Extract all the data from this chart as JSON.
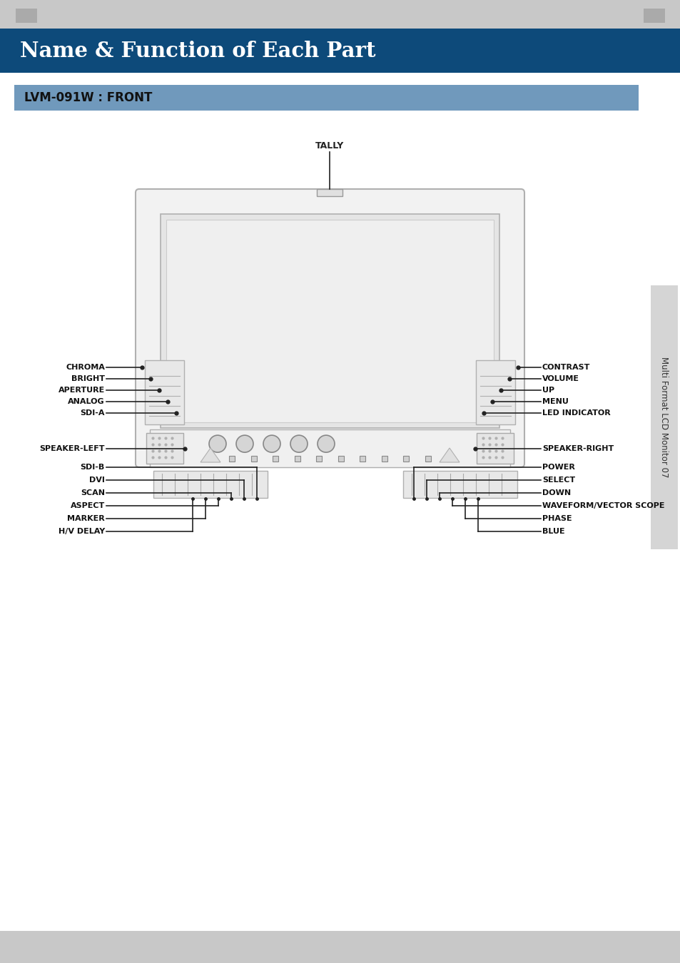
{
  "title": "Name & Function of Each Part",
  "title_bg": "#0d4a7a",
  "title_color": "#ffffff",
  "subtitle": "LVM-091W : FRONT",
  "subtitle_bg": "#7099bc",
  "subtitle_color": "#111111",
  "page_bg": "#ffffff",
  "sidebar_text": "Multi Format LCD Monitor 07",
  "left_upper_labels": [
    "CHROMA",
    "BRIGHT",
    "APERTURE",
    "ANALOG",
    "SDI-A"
  ],
  "left_lower_labels": [
    "SDI-B",
    "DVI",
    "SCAN",
    "ASPECT",
    "MARKER",
    "H/V DELAY"
  ],
  "right_upper_labels": [
    "CONTRAST",
    "VOLUME",
    "UP",
    "MENU",
    "LED INDICATOR"
  ],
  "right_lower_labels": [
    "POWER",
    "SELECT",
    "DOWN",
    "WAVEFORM/VECTOR SCOPE",
    "PHASE",
    "BLUE"
  ],
  "tally_label": "TALLY"
}
